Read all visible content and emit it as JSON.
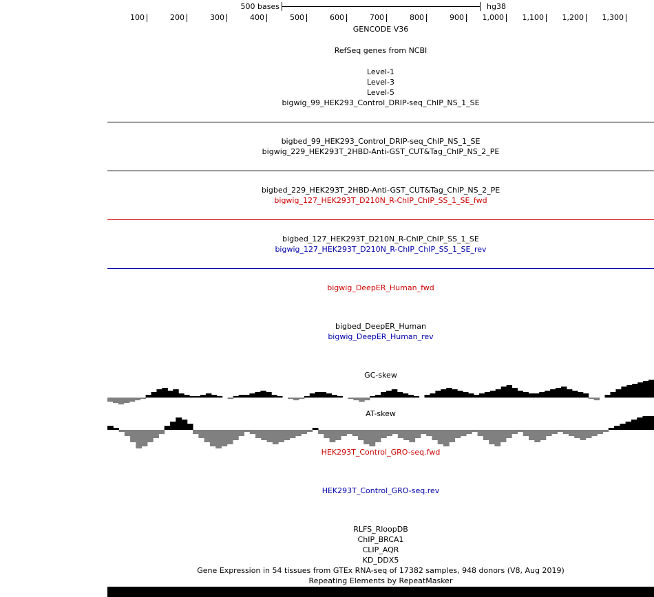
{
  "ruler": {
    "scale_text": "500 bases",
    "assembly": "hg38",
    "ticks": [
      "100",
      "200",
      "300",
      "400",
      "500",
      "600",
      "700",
      "800",
      "900",
      "1,000",
      "1,100",
      "1,200",
      "1,300"
    ]
  },
  "tracks": {
    "gencode": "GENCODE V36",
    "refseq": "RefSeq genes from NCBI",
    "level1": "Level-1",
    "level3": "Level-3",
    "level5": "Level-5",
    "bigwig_99": "bigwig_99_HEK293_Control_DRIP-seq_ChIP_NS_1_SE",
    "bigbed_99": "bigbed_99_HEK293_Control_DRIP-seq_ChIP_NS_1_SE",
    "bigwig_229": "bigwig_229_HEK293T_2HBD-Anti-GST_CUT&Tag_ChIP_NS_2_PE",
    "bigbed_229": "bigbed_229_HEK293T_2HBD-Anti-GST_CUT&Tag_ChIP_NS_2_PE",
    "bigwig_127_fwd": "bigwig_127_HEK293T_D210N_R-ChIP_ChIP_SS_1_SE_fwd",
    "bigbed_127": "bigbed_127_HEK293T_D210N_R-ChIP_ChIP_SS_1_SE",
    "bigwig_127_rev": "bigwig_127_HEK293T_D210N_R-ChIP_ChIP_SS_1_SE_rev",
    "deeper_fwd": "bigwig_DeepER_Human_fwd",
    "deeper_bed": "bigbed_DeepER_Human",
    "deeper_rev": "bigwig_DeepER_Human_rev",
    "gc_skew": "GC-skew",
    "at_skew": "AT-skew",
    "gro_fwd": "HEK293T_Control_GRO-seq.fwd",
    "gro_rev": "HEK293T_Control_GRO-seq.rev",
    "rlfs": "RLFS_RloopDB",
    "chip_brca1": "ChIP_BRCA1",
    "clip_aqr": "CLIP_AQR",
    "kd_ddx5": "KD_DDX5",
    "gtex": "Gene Expression in 54 tissues from GTEx RNA-seq of 17382 samples, 948 donors (V8, Aug 2019)",
    "repeatmasker": "Repeating Elements by RepeatMasker"
  },
  "colors": {
    "fwd": "#cc0000",
    "rev": "#0000aa",
    "positive": "#000000",
    "negative": "#808080"
  },
  "skew_data": {
    "gc": [
      -3,
      -4,
      -5,
      -4,
      -3,
      -2,
      -1,
      2,
      4,
      6,
      7,
      5,
      6,
      3,
      2,
      1,
      1,
      2,
      3,
      2,
      1,
      0,
      -1,
      1,
      2,
      2,
      3,
      4,
      5,
      4,
      2,
      1,
      0,
      -1,
      -2,
      -1,
      1,
      3,
      4,
      4,
      3,
      2,
      1,
      0,
      -1,
      -2,
      -3,
      -2,
      1,
      2,
      4,
      5,
      6,
      4,
      3,
      2,
      1,
      0,
      2,
      3,
      5,
      6,
      7,
      6,
      5,
      4,
      3,
      2,
      3,
      4,
      5,
      6,
      8,
      9,
      7,
      5,
      4,
      3,
      3,
      4,
      5,
      6,
      7,
      8,
      6,
      5,
      4,
      3,
      -1,
      -2,
      0,
      2,
      4,
      6,
      8,
      9,
      10,
      11,
      12,
      13
    ],
    "at": [
      2,
      1,
      -1,
      -3,
      -6,
      -9,
      -8,
      -6,
      -4,
      -2,
      2,
      4,
      6,
      5,
      3,
      -2,
      -4,
      -6,
      -8,
      -9,
      -8,
      -7,
      -5,
      -3,
      -1,
      -2,
      -4,
      -5,
      -6,
      -7,
      -6,
      -5,
      -4,
      -3,
      -2,
      -1,
      1,
      -2,
      -4,
      -6,
      -5,
      -3,
      -2,
      -3,
      -5,
      -7,
      -8,
      -6,
      -4,
      -3,
      -2,
      -4,
      -5,
      -6,
      -4,
      -2,
      -3,
      -5,
      -7,
      -8,
      -6,
      -4,
      -3,
      -2,
      -1,
      -3,
      -5,
      -7,
      -8,
      -6,
      -4,
      -2,
      -1,
      -3,
      -5,
      -6,
      -5,
      -3,
      -2,
      -1,
      -2,
      -3,
      -4,
      -5,
      -4,
      -3,
      -2,
      -1,
      1,
      2,
      3,
      4,
      5,
      6,
      7,
      8
    ]
  }
}
